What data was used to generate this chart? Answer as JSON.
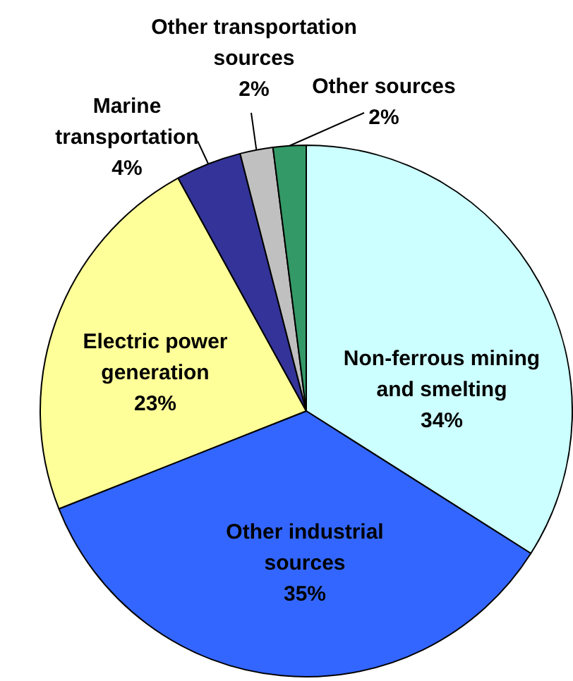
{
  "chart_data": {
    "type": "pie",
    "categories": [
      "Non-ferrous mining and smelting",
      "Other industrial sources",
      "Electric power generation",
      "Marine transportation",
      "Other transportation sources",
      "Other sources"
    ],
    "values": [
      34,
      35,
      23,
      4,
      2,
      2
    ],
    "value_labels": [
      "34%",
      "35%",
      "23%",
      "4%",
      "2%",
      "2%"
    ],
    "colors": [
      "#ccffff",
      "#3366ff",
      "#ffff99",
      "#333399",
      "#c0c0c0",
      "#339966"
    ],
    "legend": false
  }
}
